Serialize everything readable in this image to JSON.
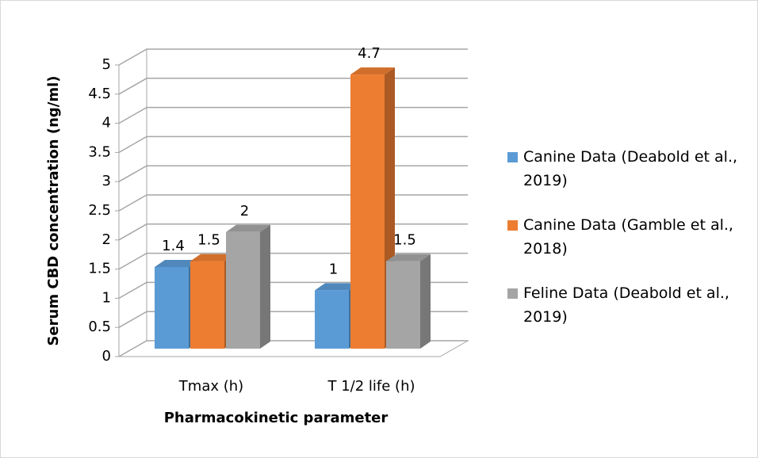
{
  "chart_data": {
    "type": "bar3d",
    "xlabel": "Pharmacokinetic parameter",
    "ylabel": "Serum CBD concentration (ng/ml)",
    "categories": [
      "Tmax (h)",
      "T 1/2 life (h)"
    ],
    "series": [
      {
        "name": "Canine Data (Deabold et al., 2019)",
        "color": "#5b9bd5",
        "values": [
          1.4,
          1
        ]
      },
      {
        "name": "Canine Data (Gamble et al., 2018)",
        "color": "#ed7d31",
        "values": [
          1.5,
          4.7
        ]
      },
      {
        "name": "Feline Data (Deabold et al., 2019)",
        "color": "#a5a5a5",
        "values": [
          2,
          1.5
        ]
      }
    ],
    "ylim": [
      0,
      5
    ],
    "yticks": [
      0,
      0.5,
      1,
      1.5,
      2,
      2.5,
      3,
      3.5,
      4,
      4.5,
      5
    ],
    "grid": true,
    "legend": "right"
  }
}
